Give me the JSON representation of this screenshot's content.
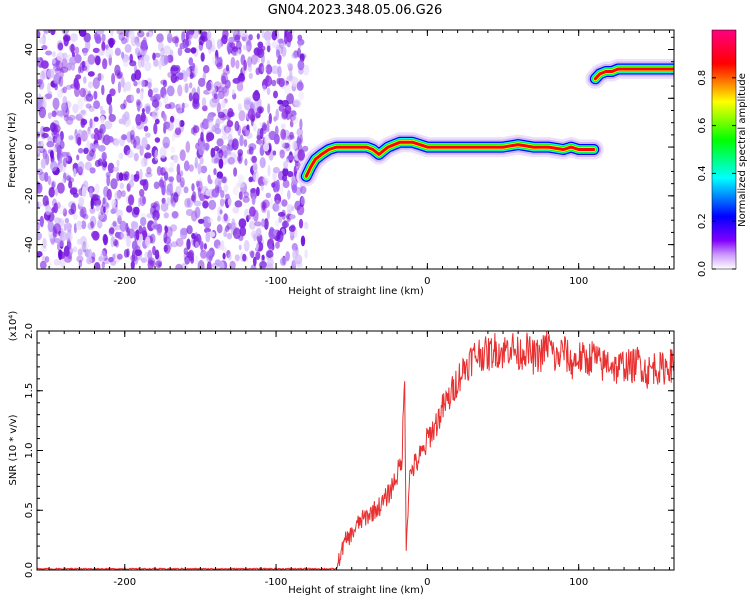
{
  "title": "GN04.2023.348.05.06.G26",
  "chart_data": [
    {
      "type": "heatmap",
      "xlabel": "Height of straight line (km)",
      "ylabel": "Frequency (Hz)",
      "xlim": [
        -258,
        163
      ],
      "ylim": [
        -50,
        48
      ],
      "xticks": [
        -200,
        -100,
        0,
        100
      ],
      "xtick_labels": [
        "-200",
        "-100",
        "0",
        "100"
      ],
      "yticks": [
        -40,
        -20,
        0,
        20,
        40
      ],
      "ytick_labels": [
        "-40",
        "-20",
        "0",
        "20",
        "40"
      ],
      "colorbar": {
        "label": "Normalized spectral amplitude",
        "range": [
          0,
          1
        ],
        "ticks": [
          0,
          0.2,
          0.4,
          0.6,
          0.8
        ],
        "tick_labels": [
          "0.0",
          "0.2",
          "0.4",
          "0.6",
          "0.8"
        ],
        "colormap": [
          "#ffffff",
          "#8000ff",
          "#0000ff",
          "#00ffff",
          "#00ff00",
          "#ffff00",
          "#ff0000",
          "#ff0080"
        ]
      },
      "noise_region": {
        "x_range": [
          -258,
          -80
        ],
        "description_color": "#8a2be2"
      },
      "signal_trace": {
        "x": [
          -80,
          -77,
          -74,
          -70,
          -65,
          -60,
          -55,
          -50,
          -45,
          -40,
          -36,
          -32,
          -30,
          -26,
          -22,
          -18,
          -14,
          -10,
          -5,
          0,
          10,
          20,
          30,
          40,
          50,
          60,
          70,
          80,
          90,
          95,
          100,
          105,
          110
        ],
        "y": [
          -12,
          -8,
          -5,
          -3,
          -1,
          0,
          0,
          0,
          0,
          0,
          -1,
          -3,
          -2,
          0,
          1,
          2,
          2,
          2,
          1,
          0,
          0,
          0,
          0,
          0,
          0,
          1,
          0,
          0,
          -1,
          0,
          -1,
          -1,
          -1
        ]
      },
      "signal_trace_2": {
        "x": [
          111,
          114,
          118,
          122,
          126,
          130,
          140,
          150,
          160,
          163
        ],
        "y": [
          28,
          30,
          31,
          31,
          32,
          32,
          32,
          32,
          32,
          32
        ]
      }
    },
    {
      "type": "line",
      "xlabel": "Height of straight line (km)",
      "ylabel": "SNR (10 * v/v)",
      "y_multiplier": "(x10⁴)",
      "xlim": [
        -258,
        163
      ],
      "ylim": [
        0,
        2.0
      ],
      "xticks": [
        -200,
        -100,
        0,
        100
      ],
      "xtick_labels": [
        "-200",
        "-100",
        "0",
        "100"
      ],
      "yticks": [
        0,
        0.5,
        1.0,
        1.5,
        2.0
      ],
      "ytick_labels": [
        "0.0",
        "0.5",
        "1.0",
        "1.5",
        "2.0"
      ],
      "color": "#e83030",
      "series": [
        {
          "x": [
            -258,
            -220,
            -180,
            -140,
            -100,
            -75,
            -60,
            -57,
            -54,
            -50,
            -45,
            -40,
            -35,
            -30,
            -25,
            -20,
            -17,
            -15,
            -14,
            -12,
            -10,
            -7,
            -5,
            -2,
            0,
            5,
            10,
            15,
            20,
            25,
            30,
            35,
            40,
            45,
            50,
            55,
            60,
            65,
            70,
            75,
            80,
            85,
            90,
            95,
            100,
            105,
            110,
            115,
            120,
            125,
            130,
            135,
            140,
            145,
            150,
            155,
            160,
            163
          ],
          "y": [
            0.01,
            0.01,
            0.01,
            0.01,
            0.01,
            0.01,
            0.01,
            0.15,
            0.25,
            0.3,
            0.4,
            0.45,
            0.5,
            0.55,
            0.65,
            0.8,
            0.9,
            1.6,
            0.2,
            0.75,
            0.85,
            0.9,
            0.95,
            1.0,
            1.1,
            1.2,
            1.35,
            1.45,
            1.6,
            1.7,
            1.78,
            1.82,
            1.8,
            1.85,
            1.82,
            1.88,
            1.8,
            1.85,
            1.78,
            1.8,
            1.9,
            1.75,
            1.85,
            1.72,
            1.78,
            1.75,
            1.8,
            1.7,
            1.75,
            1.68,
            1.72,
            1.7,
            1.75,
            1.65,
            1.7,
            1.68,
            1.72,
            1.7
          ]
        }
      ]
    }
  ]
}
